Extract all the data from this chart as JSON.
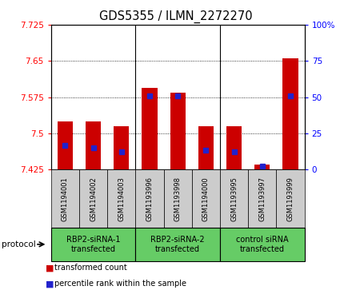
{
  "title": "GDS5355 / ILMN_2272270",
  "samples": [
    "GSM1194001",
    "GSM1194002",
    "GSM1194003",
    "GSM1193996",
    "GSM1193998",
    "GSM1194000",
    "GSM1193995",
    "GSM1193997",
    "GSM1193999"
  ],
  "red_values": [
    7.524,
    7.524,
    7.515,
    7.595,
    7.585,
    7.515,
    7.515,
    7.435,
    7.655
  ],
  "blue_values": [
    7.475,
    7.47,
    7.462,
    7.578,
    7.578,
    7.465,
    7.462,
    7.432,
    7.578
  ],
  "ylim_left": [
    7.425,
    7.725
  ],
  "yticks_left": [
    7.425,
    7.5,
    7.575,
    7.65,
    7.725
  ],
  "yticks_right": [
    0,
    25,
    50,
    75,
    100
  ],
  "bar_base": 7.425,
  "bar_color_red": "#cc0000",
  "bar_color_blue": "#2222cc",
  "bar_width": 0.55,
  "group_starts": [
    0,
    3,
    6
  ],
  "group_ends": [
    3,
    6,
    9
  ],
  "group_labels": [
    "RBP2-siRNA-1\ntransfected",
    "RBP2-siRNA-2\ntransfected",
    "control siRNA\ntransfected"
  ],
  "group_color": "#66cc66",
  "tick_area_color": "#cccccc",
  "legend_red": "transformed count",
  "legend_blue": "percentile rank within the sample",
  "protocol_label": "protocol"
}
